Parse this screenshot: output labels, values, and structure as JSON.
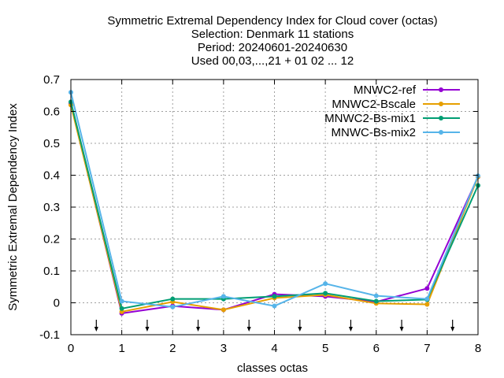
{
  "chart_data": {
    "type": "line",
    "title_lines": [
      "Symmetric Extremal Dependency Index  for Cloud cover (octas)",
      "Selection: Denmark     11 stations",
      "Period: 20240601-20240630",
      "Used 00,03,...,21 + 01 02 ... 12"
    ],
    "xlabel": "classes octas",
    "ylabel": "Symmetric Extremal Dependency Index",
    "xlim": [
      0,
      8
    ],
    "ylim": [
      -0.1,
      0.7
    ],
    "x_ticks": [
      "0",
      "1",
      "2",
      "3",
      "4",
      "5",
      "6",
      "7",
      "8"
    ],
    "y_ticks": [
      "-0.1",
      "0",
      "0.1",
      "0.2",
      "0.3",
      "0.4",
      "0.5",
      "0.6",
      "0.7"
    ],
    "y_tick_values": [
      -0.1,
      0,
      0.1,
      0.2,
      0.3,
      0.4,
      0.5,
      0.6,
      0.7
    ],
    "grid": true,
    "legend_position": "top-right",
    "arrow_markers_x": [
      0.5,
      1.5,
      2.5,
      3.5,
      4.5,
      5.5,
      6.5,
      7.5
    ],
    "x": [
      0,
      1,
      2,
      3,
      4,
      5,
      6,
      7,
      8
    ],
    "series": [
      {
        "name": "MNWC2-ref",
        "color": "#9400d3",
        "marker": "circle",
        "values": [
          0.625,
          -0.033,
          -0.01,
          -0.022,
          0.027,
          0.02,
          0.003,
          0.045,
          0.395
        ]
      },
      {
        "name": "MNWC2-Bscale",
        "color": "#e69f00",
        "marker": "circle",
        "values": [
          0.62,
          -0.028,
          0.003,
          -0.022,
          0.015,
          0.025,
          -0.002,
          -0.005,
          0.395
        ]
      },
      {
        "name": "MNWC2-Bs-mix1",
        "color": "#009e73",
        "marker": "circle",
        "values": [
          0.63,
          -0.018,
          0.012,
          0.012,
          0.02,
          0.03,
          0.005,
          0.01,
          0.368
        ]
      },
      {
        "name": "MNWC-Bs-mix2",
        "color": "#56b4e9",
        "marker": "circle",
        "values": [
          0.66,
          0.005,
          -0.013,
          0.02,
          -0.01,
          0.06,
          0.022,
          0.012,
          0.398
        ]
      }
    ]
  }
}
